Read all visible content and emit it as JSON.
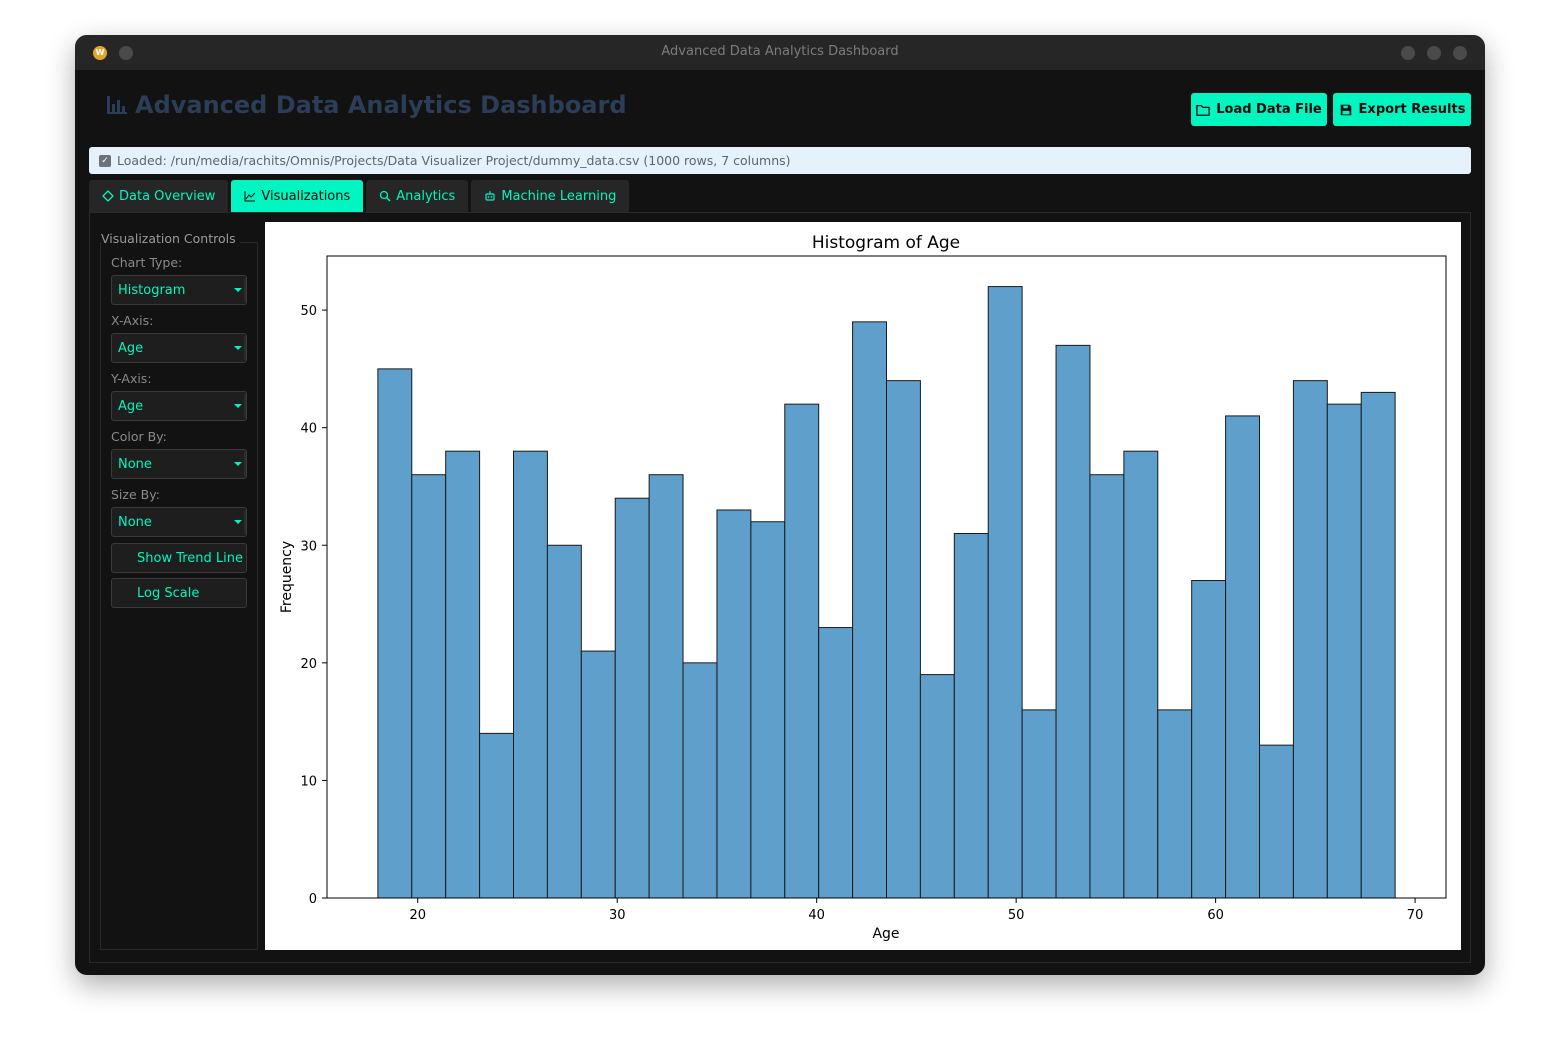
{
  "window": {
    "title": "Advanced Data Analytics Dashboard",
    "app_icon": "W"
  },
  "header": {
    "title": "Advanced Data Analytics Dashboard",
    "title_icon": "bar-chart-icon",
    "load_button": "Load Data File",
    "export_button": "Export Results"
  },
  "status": {
    "text": "Loaded: /run/media/rachits/Omnis/Projects/Data Visualizer Project/dummy_data.csv (1000 rows, 7 columns)"
  },
  "tabs": [
    {
      "label": "Data Overview",
      "icon": "tag-icon"
    },
    {
      "label": "Visualizations",
      "icon": "line-chart-icon",
      "active": true
    },
    {
      "label": "Analytics",
      "icon": "magnifier-icon"
    },
    {
      "label": "Machine Learning",
      "icon": "robot-icon"
    }
  ],
  "controls": {
    "title": "Visualization Controls",
    "chart_type_label": "Chart Type:",
    "chart_type": "Histogram",
    "x_axis_label": "X-Axis:",
    "x_axis": "Age",
    "y_axis_label": "Y-Axis:",
    "y_axis": "Age",
    "color_by_label": "Color By:",
    "color_by": "None",
    "size_by_label": "Size By:",
    "size_by": "None",
    "trend_button": "Show Trend Line",
    "log_button": "Log Scale"
  },
  "colors": {
    "accent": "#00f5c0",
    "bar_fill": "#5f9fcc",
    "bar_edge": "#1a1a1a"
  },
  "chart_data": {
    "type": "bar",
    "title": "Histogram of Age",
    "xlabel": "Age",
    "ylabel": "Frequency",
    "xlim": [
      15.45,
      71.55
    ],
    "ylim": [
      0,
      54.6
    ],
    "xticks": [
      20,
      30,
      40,
      50,
      60,
      70
    ],
    "yticks": [
      0,
      10,
      20,
      30,
      40,
      50
    ],
    "bin_start": 18,
    "bin_width": 1.7,
    "values": [
      45,
      36,
      38,
      14,
      38,
      30,
      21,
      34,
      36,
      20,
      33,
      32,
      42,
      23,
      49,
      44,
      19,
      31,
      52,
      16,
      47,
      36,
      38,
      16,
      27,
      41,
      13,
      44,
      42,
      43
    ],
    "grid": false
  }
}
